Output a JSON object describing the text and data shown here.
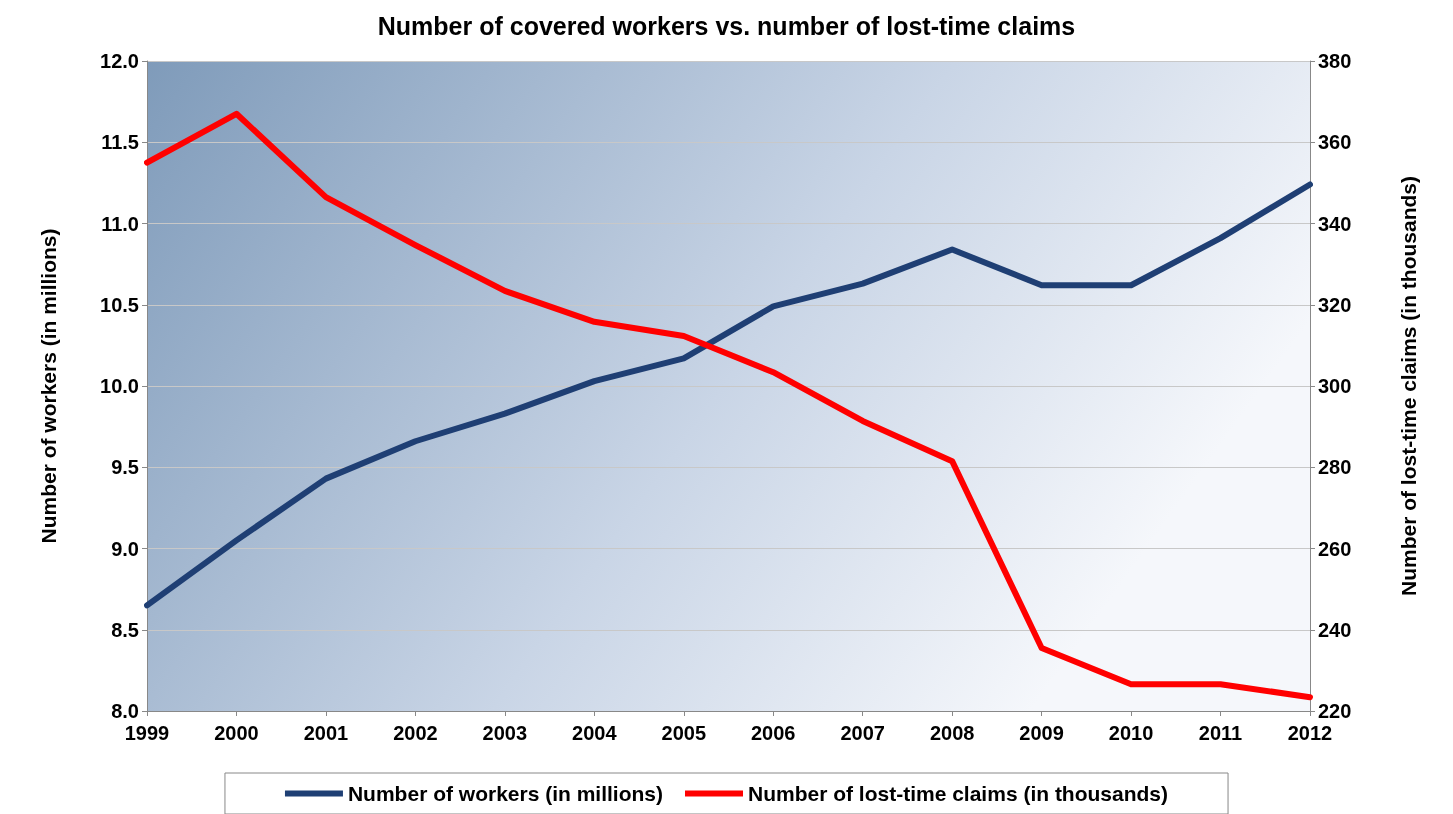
{
  "chart_data": {
    "type": "line",
    "title": "Number of covered workers vs. number of lost-time claims",
    "categories": [
      "1999",
      "2000",
      "2001",
      "2002",
      "2003",
      "2004",
      "2005",
      "2006",
      "2007",
      "2008",
      "2009",
      "2010",
      "2011",
      "2012"
    ],
    "series": [
      {
        "name": "Number of workers (in millions)",
        "color": "#1f3f74",
        "values": [
          8.65,
          9.05,
          9.43,
          9.66,
          9.83,
          10.03,
          10.17,
          10.49,
          10.63,
          10.84,
          10.62,
          10.62,
          10.91,
          11.24
        ]
      },
      {
        "name": "Number of lost-time claims (in thousands)",
        "color": "#ff0000",
        "axis": "y2",
        "values": [
          355,
          367,
          346.5,
          334.7,
          323.4,
          315.8,
          312.3,
          303.4,
          291.4,
          281.5,
          235.5,
          226.6,
          226.6,
          223.4
        ]
      }
    ],
    "ylabel": "Number of workers (in millions)",
    "y2label": "Number of lost-time claims (in thousands)",
    "ylim": [
      8.0,
      12.0
    ],
    "yticks": [
      {
        "value": 8,
        "label": "8.0"
      },
      {
        "value": 8.5,
        "label": "8.5"
      },
      {
        "value": 9,
        "label": "9.0"
      },
      {
        "value": 9.5,
        "label": "9.5"
      },
      {
        "value": 10,
        "label": "10.0"
      },
      {
        "value": 10.5,
        "label": "10.5"
      },
      {
        "value": 11,
        "label": "11.0"
      },
      {
        "value": 11.5,
        "label": "11.5"
      },
      {
        "value": 12,
        "label": "12.0"
      }
    ],
    "y2lim": [
      220,
      380
    ],
    "y2ticks": [
      220,
      240,
      260,
      280,
      300,
      320,
      340,
      360,
      380
    ],
    "grid": "y",
    "legend": "bottom",
    "marker": "none",
    "line_style": "solid"
  }
}
